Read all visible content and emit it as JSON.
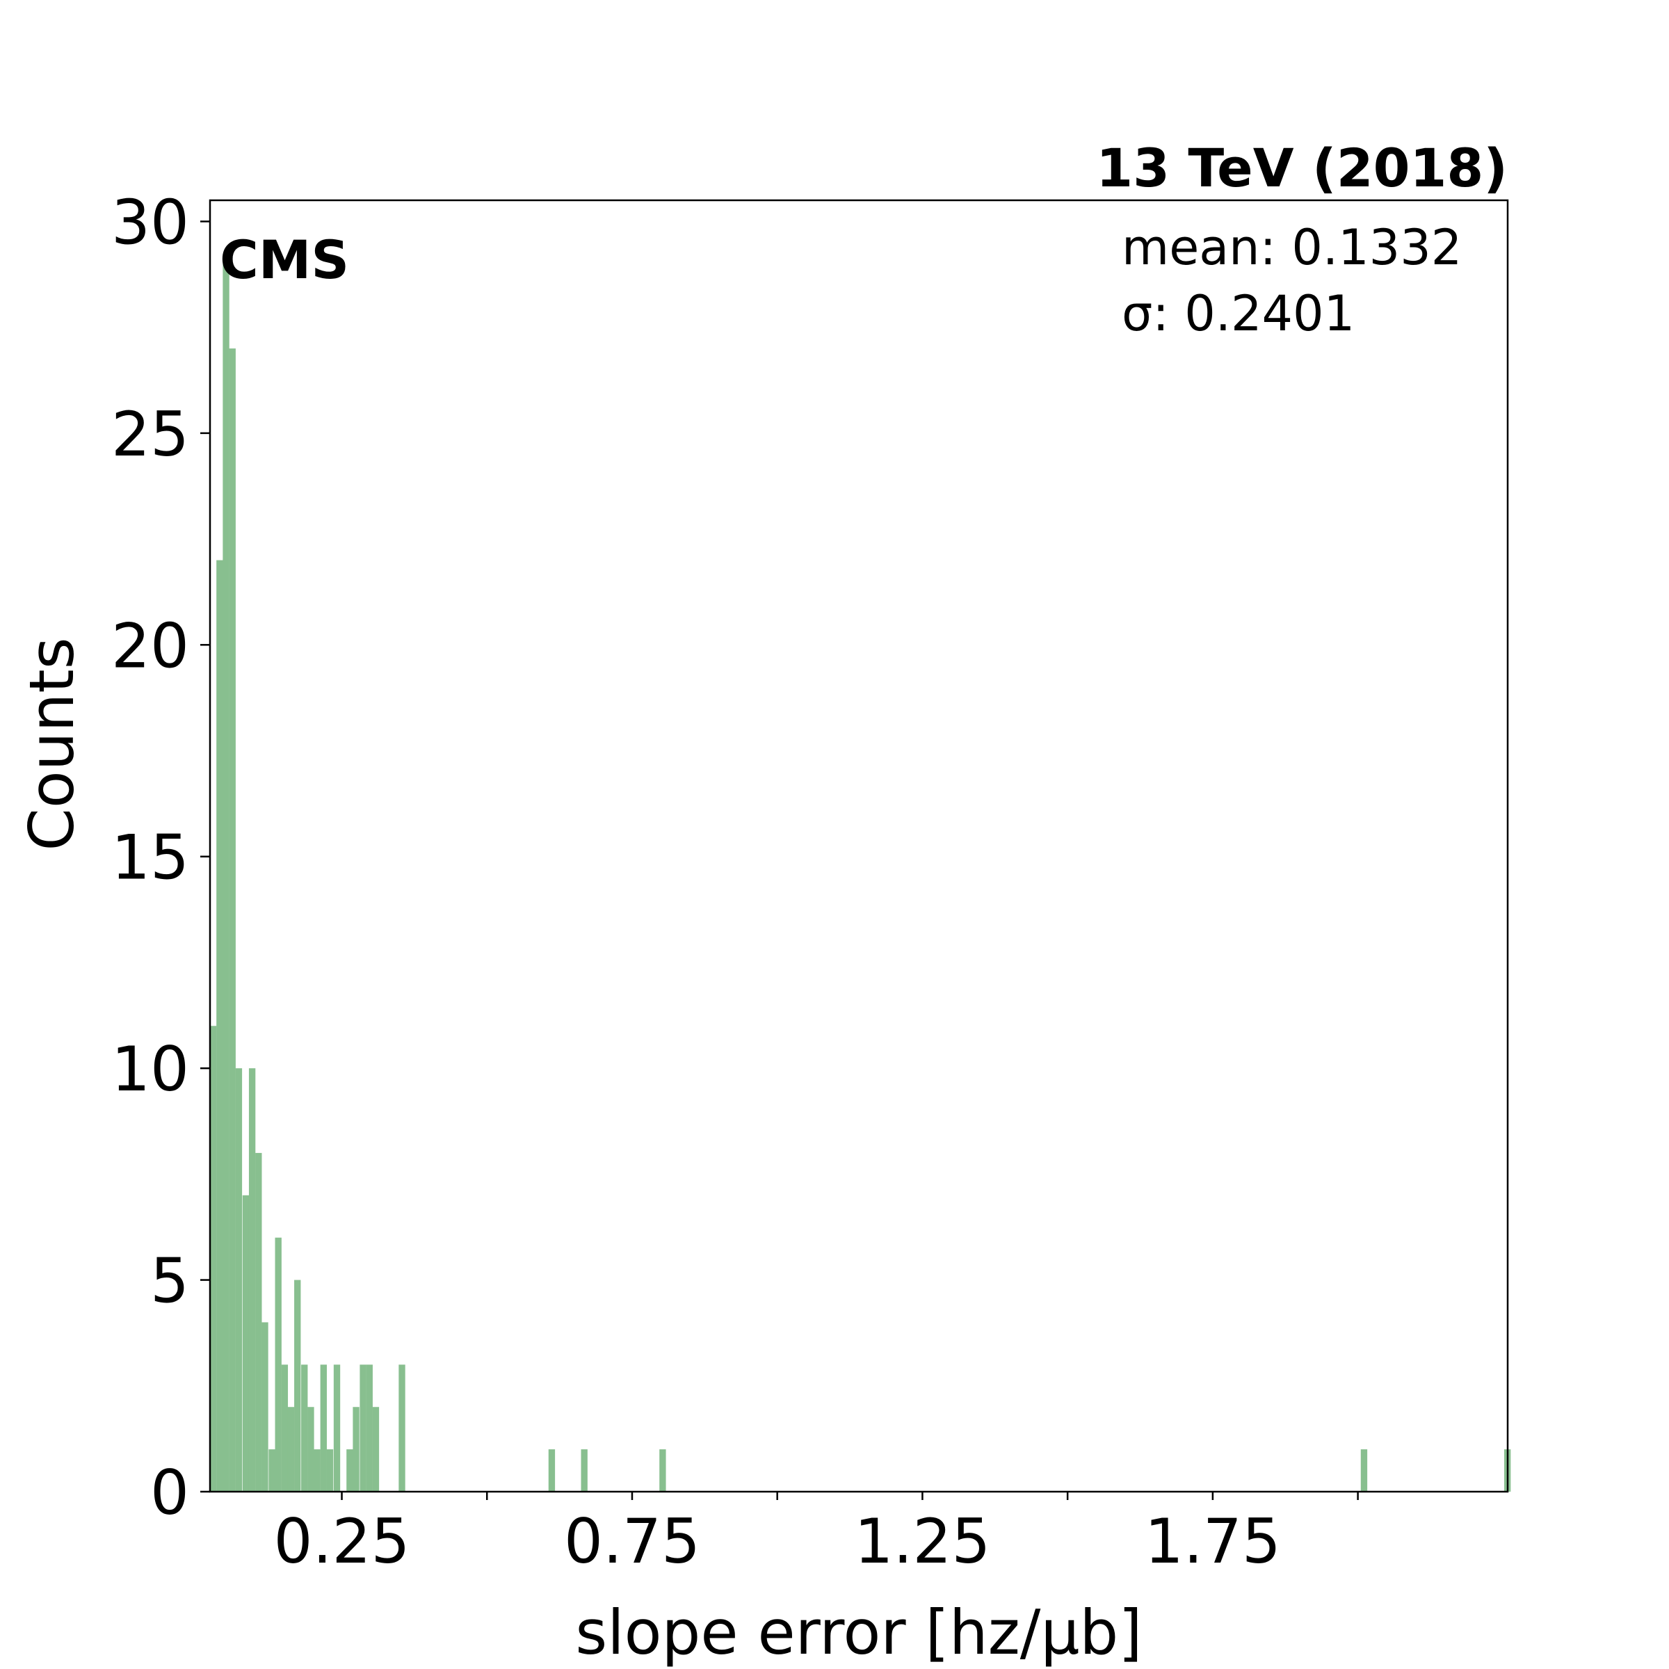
{
  "chart_data": {
    "type": "bar",
    "title": "13 TeV (2018)",
    "experiment_label": "CMS",
    "xlabel": "slope error [hz/μb]",
    "ylabel": "Counts",
    "xlim": [
      0.023,
      2.258
    ],
    "ylim": [
      0,
      30.5
    ],
    "x_ticks": [
      0.25,
      0.75,
      1.25,
      1.75
    ],
    "x_tick_labels": [
      "0.25",
      "0.75",
      "1.25",
      "1.75"
    ],
    "x_minor_ticks": [
      0.5,
      1.0,
      1.5,
      2.0
    ],
    "y_ticks": [
      0,
      5,
      10,
      15,
      20,
      25,
      30
    ],
    "y_tick_labels": [
      "0",
      "5",
      "10",
      "15",
      "20",
      "25",
      "30"
    ],
    "bin_width": 0.0112,
    "bar_color": "#88bf8f",
    "grid": false,
    "stats": {
      "mean_text": "mean: 0.1332",
      "sigma_text": "σ: 0.2401"
    },
    "bins": [
      {
        "x": 0.023,
        "count": 11
      },
      {
        "x": 0.034,
        "count": 22
      },
      {
        "x": 0.045,
        "count": 29
      },
      {
        "x": 0.056,
        "count": 27
      },
      {
        "x": 0.067,
        "count": 10
      },
      {
        "x": 0.079,
        "count": 7
      },
      {
        "x": 0.09,
        "count": 10
      },
      {
        "x": 0.101,
        "count": 8
      },
      {
        "x": 0.112,
        "count": 4
      },
      {
        "x": 0.124,
        "count": 1
      },
      {
        "x": 0.135,
        "count": 6
      },
      {
        "x": 0.146,
        "count": 3
      },
      {
        "x": 0.157,
        "count": 2
      },
      {
        "x": 0.168,
        "count": 5
      },
      {
        "x": 0.18,
        "count": 3
      },
      {
        "x": 0.191,
        "count": 2
      },
      {
        "x": 0.202,
        "count": 1
      },
      {
        "x": 0.213,
        "count": 3
      },
      {
        "x": 0.224,
        "count": 1
      },
      {
        "x": 0.236,
        "count": 3
      },
      {
        "x": 0.258,
        "count": 1
      },
      {
        "x": 0.269,
        "count": 2
      },
      {
        "x": 0.281,
        "count": 3
      },
      {
        "x": 0.292,
        "count": 3
      },
      {
        "x": 0.303,
        "count": 2
      },
      {
        "x": 0.348,
        "count": 3
      },
      {
        "x": 0.606,
        "count": 1
      },
      {
        "x": 0.662,
        "count": 1
      },
      {
        "x": 0.797,
        "count": 1
      },
      {
        "x": 2.005,
        "count": 1
      },
      {
        "x": 2.252,
        "count": 1
      }
    ]
  }
}
